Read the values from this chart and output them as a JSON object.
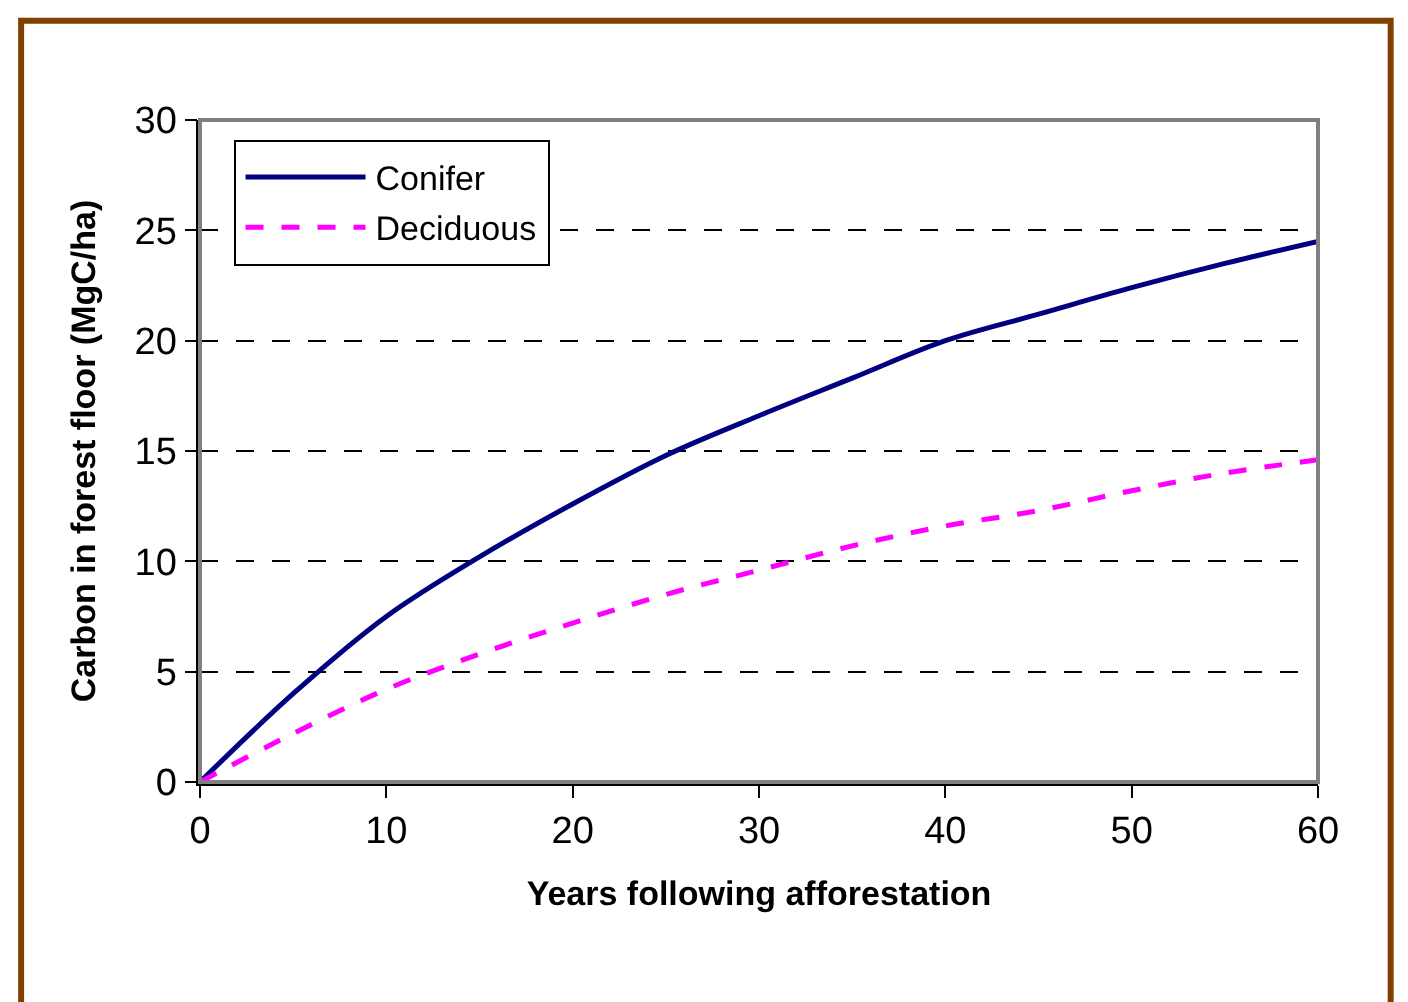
{
  "chart_data": {
    "type": "line",
    "xlabel": "Years following afforestation",
    "ylabel": "Carbon in forest floor (MgC/ha)",
    "x": [
      0,
      5,
      10,
      15,
      20,
      25,
      30,
      35,
      40,
      45,
      50,
      55,
      60
    ],
    "series": [
      {
        "name": "Conifer",
        "color": "#000080",
        "line_style": "solid",
        "values": [
          0,
          4.0,
          7.5,
          10.2,
          12.6,
          14.8,
          16.6,
          18.3,
          20.0,
          21.2,
          22.4,
          23.5,
          24.5
        ]
      },
      {
        "name": "Deciduous",
        "color": "#ff00ff",
        "line_style": "dashed",
        "values": [
          0,
          2.2,
          4.2,
          5.8,
          7.2,
          8.5,
          9.6,
          10.7,
          11.6,
          12.3,
          13.2,
          14.0,
          14.6
        ]
      }
    ],
    "xlim": [
      0,
      60
    ],
    "xticks": [
      0,
      10,
      20,
      30,
      40,
      50,
      60
    ],
    "ylim": [
      0,
      30
    ],
    "yticks": [
      0,
      5,
      10,
      15,
      20,
      25,
      30
    ],
    "grid": "y",
    "legend": "top left",
    "marker": "none"
  }
}
